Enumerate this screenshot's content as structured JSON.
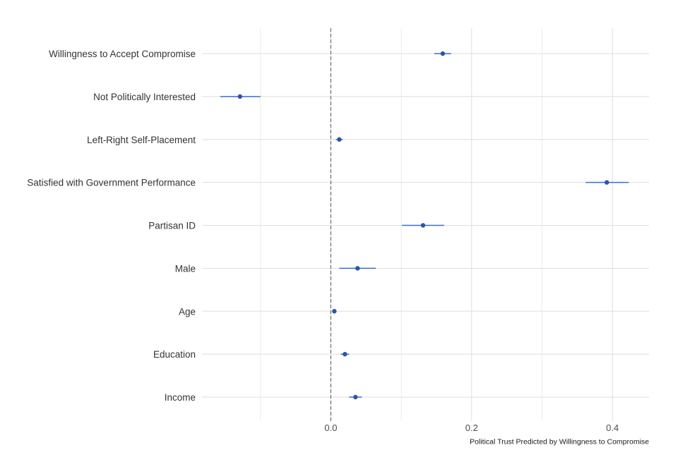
{
  "chart_data": {
    "type": "scatter",
    "subtype": "coefficient-plot",
    "caption": "Political Trust Predicted by Willingness to Compromise",
    "title": "",
    "xlabel": "",
    "ylabel": "",
    "xlim": [
      -0.183,
      0.452
    ],
    "x_ticks": [
      0.0,
      0.2,
      0.4
    ],
    "x_tick_labels": [
      "0.0",
      "0.2",
      "0.4"
    ],
    "reference_line": {
      "x": 0,
      "style": "dashed"
    },
    "grid": true,
    "legend": "none",
    "colors": {
      "point": "#2b55a8",
      "interval": "#3a6ccf",
      "grid": "#dedede",
      "refline": "#555555"
    },
    "terms": [
      {
        "label": "Willingness to Accept Compromise",
        "estimate": 0.159,
        "low": 0.147,
        "high": 0.171
      },
      {
        "label": "Not Politically Interested",
        "estimate": -0.129,
        "low": -0.157,
        "high": -0.1
      },
      {
        "label": "Left-Right Self-Placement",
        "estimate": 0.012,
        "low": 0.007,
        "high": 0.017
      },
      {
        "label": "Satisfied with Government Performance",
        "estimate": 0.392,
        "low": 0.362,
        "high": 0.423
      },
      {
        "label": "Partisan ID",
        "estimate": 0.131,
        "low": 0.101,
        "high": 0.161
      },
      {
        "label": "Male",
        "estimate": 0.038,
        "low": 0.012,
        "high": 0.064
      },
      {
        "label": "Age",
        "estimate": 0.005,
        "low": 0.003,
        "high": 0.007
      },
      {
        "label": "Education",
        "estimate": 0.02,
        "low": 0.014,
        "high": 0.026
      },
      {
        "label": "Income",
        "estimate": 0.035,
        "low": 0.026,
        "high": 0.044
      }
    ]
  }
}
